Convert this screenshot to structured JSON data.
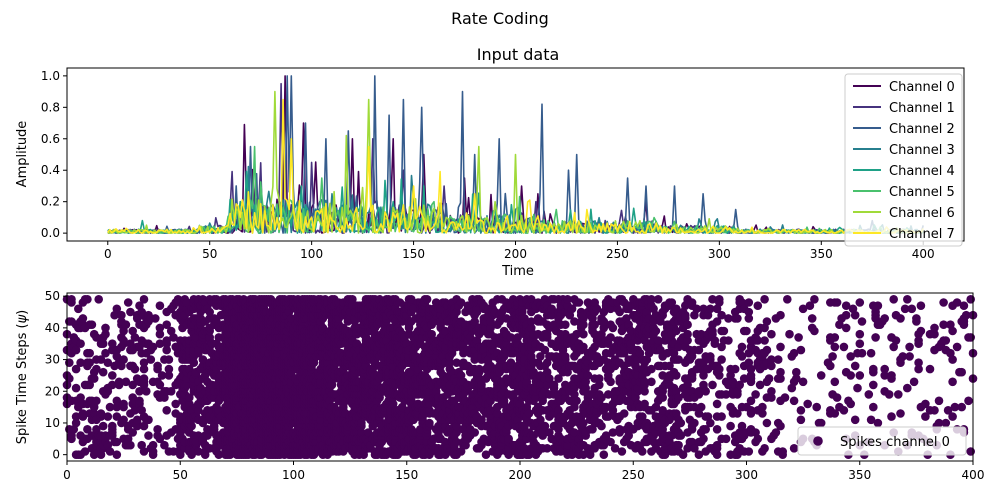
{
  "figure": {
    "suptitle": "Rate Coding"
  },
  "chart_data": [
    {
      "type": "line",
      "title": "Input data",
      "xlabel": "Time",
      "ylabel": "Amplitude",
      "xlim": [
        -20,
        420
      ],
      "ylim": [
        -0.05,
        1.05
      ],
      "xticks": [
        0,
        50,
        100,
        150,
        200,
        250,
        300,
        350,
        400
      ],
      "yticks": [
        0.0,
        0.2,
        0.4,
        0.6,
        0.8,
        1.0
      ],
      "legend": "top-right",
      "grid": false,
      "x": [
        0,
        400
      ],
      "series": [
        {
          "name": "Channel 0",
          "color": "#440154",
          "peaks": [
            [
              67,
              0.69
            ],
            [
              87,
              1.0
            ],
            [
              96,
              0.7
            ],
            [
              120,
              0.6
            ],
            [
              140,
              0.6
            ],
            [
              155,
              0.5
            ],
            [
              175,
              0.35
            ],
            [
              203,
              0.3
            ],
            [
              211,
              0.25
            ],
            [
              264,
              0.2
            ]
          ]
        },
        {
          "name": "Channel 1",
          "color": "#46327e",
          "peaks": [
            [
              85,
              0.95
            ],
            [
              100,
              0.45
            ],
            [
              130,
              0.6
            ],
            [
              145,
              0.4
            ],
            [
              165,
              0.3
            ],
            [
              210,
              0.2
            ]
          ]
        },
        {
          "name": "Channel 2",
          "color": "#365c8d",
          "peaks": [
            [
              70,
              0.55
            ],
            [
              88,
              1.0
            ],
            [
              90,
              1.0
            ],
            [
              97,
              0.7
            ],
            [
              107,
              0.6
            ],
            [
              118,
              0.65
            ],
            [
              131,
              1.0
            ],
            [
              138,
              0.75
            ],
            [
              145,
              0.85
            ],
            [
              154,
              0.8
            ],
            [
              174,
              0.9
            ],
            [
              180,
              0.5
            ],
            [
              192,
              0.6
            ],
            [
              213,
              0.82
            ],
            [
              226,
              0.4
            ],
            [
              230,
              0.5
            ],
            [
              255,
              0.35
            ],
            [
              264,
              0.3
            ],
            [
              278,
              0.3
            ],
            [
              292,
              0.25
            ],
            [
              308,
              0.15
            ],
            [
              375,
              0.08
            ]
          ]
        },
        {
          "name": "Channel 3",
          "color": "#277f8e",
          "peaks": [
            [
              75,
              0.3
            ],
            [
              110,
              0.25
            ],
            [
              150,
              0.2
            ],
            [
              200,
              0.15
            ]
          ]
        },
        {
          "name": "Channel 4",
          "color": "#1fa187",
          "peaks": [
            [
              17,
              0.08
            ],
            [
              65,
              0.2
            ],
            [
              95,
              0.3
            ],
            [
              140,
              0.2
            ],
            [
              190,
              0.15
            ]
          ]
        },
        {
          "name": "Channel 5",
          "color": "#4ac16d",
          "peaks": [
            [
              72,
              0.55
            ],
            [
              105,
              0.35
            ],
            [
              160,
              0.2
            ],
            [
              220,
              0.15
            ]
          ]
        },
        {
          "name": "Channel 6",
          "color": "#a0da39",
          "peaks": [
            [
              82,
              0.9
            ],
            [
              117,
              0.62
            ],
            [
              128,
              0.85
            ],
            [
              182,
              0.55
            ],
            [
              200,
              0.5
            ]
          ]
        },
        {
          "name": "Channel 7",
          "color": "#fde725",
          "peaks": [
            [
              86,
              0.85
            ],
            [
              90,
              0.6
            ],
            [
              128,
              0.55
            ],
            [
              150,
              0.3
            ],
            [
              180,
              0.25
            ],
            [
              235,
              0.15
            ]
          ]
        }
      ]
    },
    {
      "type": "scatter",
      "title": "",
      "xlabel": "",
      "ylabel": "Spike Time Steps ($\\psi$)",
      "xlim": [
        0,
        400
      ],
      "ylim": [
        -2,
        51
      ],
      "xticks": [
        0,
        50,
        100,
        150,
        200,
        250,
        300,
        350,
        400
      ],
      "yticks": [
        0,
        10,
        20,
        30,
        40,
        50
      ],
      "legend": "bottom-right",
      "grid": false,
      "series": [
        {
          "name": "Spikes channel 0",
          "color": "#440154",
          "y_range": [
            0,
            49
          ]
        }
      ]
    }
  ]
}
